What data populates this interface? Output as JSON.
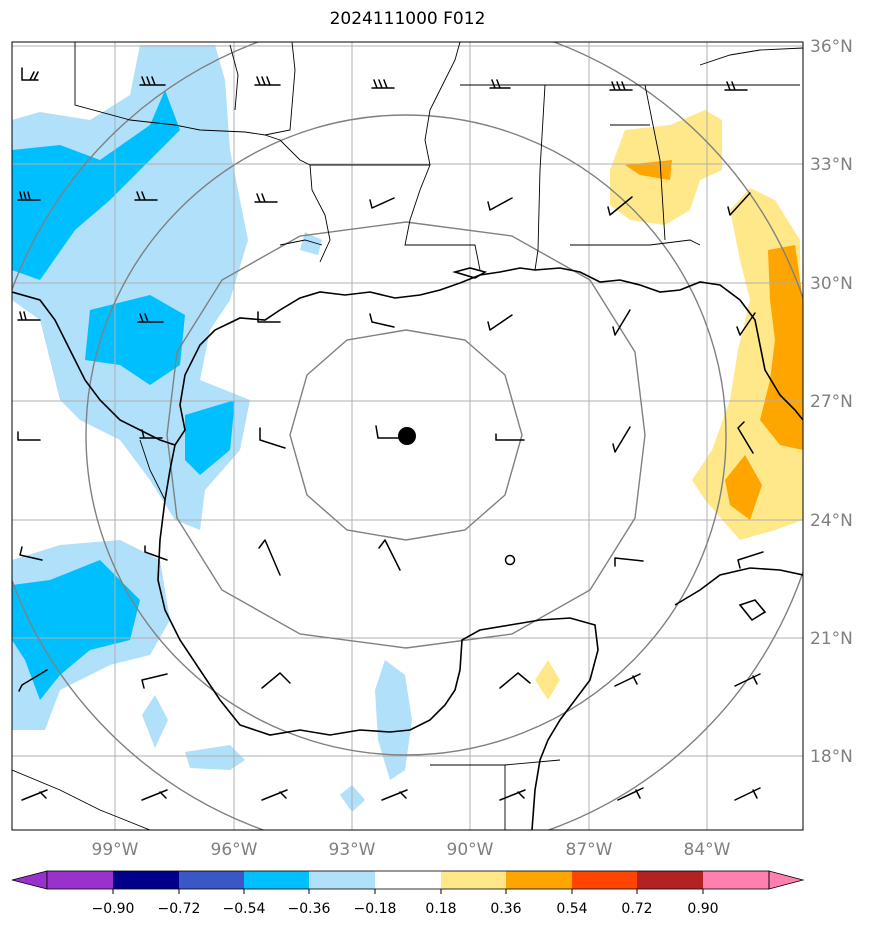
{
  "title": "2024111000 F012",
  "lat_labels": [
    "36°N",
    "33°N",
    "30°N",
    "27°N",
    "24°N",
    "21°N",
    "18°N"
  ],
  "lon_labels": [
    "99°W",
    "96°W",
    "93°W",
    "90°W",
    "87°W",
    "84°W"
  ],
  "colorbar": {
    "tick_labels": [
      "−0.90",
      "−0.72",
      "−0.54",
      "−0.36",
      "−0.18",
      "0.18",
      "0.36",
      "0.54",
      "0.72",
      "0.90"
    ],
    "colors": [
      "#9932cc",
      "#00008b",
      "#3a57c8",
      "#00bfff",
      "#b0e0fa",
      "#ffffff",
      "#ffe88a",
      "#ffa500",
      "#ff4500",
      "#b22222",
      "#ff7fae"
    ]
  },
  "colors": {
    "grid": "#b0b0b0",
    "range_ring": "#808080",
    "label": "#808080",
    "coast": "#000000"
  }
}
